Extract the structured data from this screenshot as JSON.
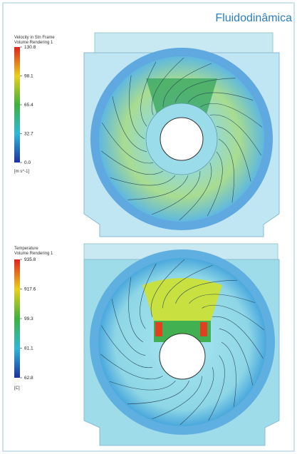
{
  "header": {
    "title": "Fluidodinâmica"
  },
  "figures": [
    {
      "legend": {
        "title": "Velocity in Stn Frame",
        "subtitle": "Volume Rendering 1",
        "ticks": [
          "130.8",
          "98.1",
          "65.4",
          "32.7",
          "0.0"
        ],
        "unit": "[m s^-1]"
      }
    },
    {
      "legend": {
        "title": "Temperature",
        "subtitle": "Volume Rendering 1",
        "ticks": [
          "935.8",
          "917.6",
          "99.3",
          "81.1",
          "62.8"
        ],
        "unit": "[C]"
      }
    }
  ]
}
